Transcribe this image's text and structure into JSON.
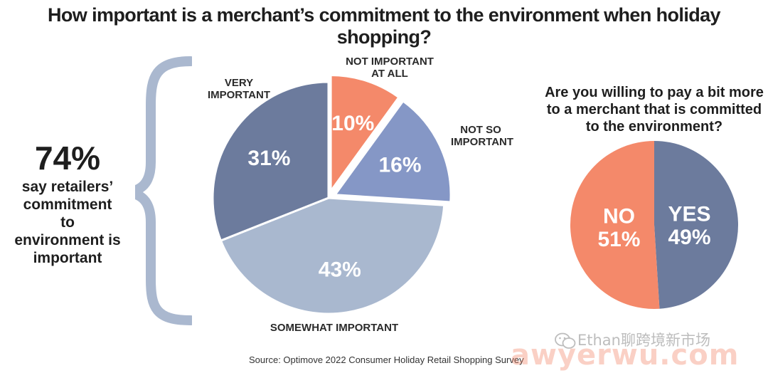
{
  "title": "How important is a merchant’s commitment to the environment when holiday shopping?",
  "summary": {
    "big_number": "74%",
    "text": "say retailers’ commitment to environment is important"
  },
  "chart_data": [
    {
      "type": "pie",
      "categories": [
        "NOT IMPORTANT AT ALL",
        "NOT SO IMPORTANT",
        "SOMEWHAT IMPORTANT",
        "VERY IMPORTANT"
      ],
      "values": [
        10,
        16,
        43,
        31
      ],
      "value_labels": [
        "10%",
        "16%",
        "43%",
        "31%"
      ],
      "colors": [
        "#f4896a",
        "#8597c6",
        "#a9b8cf",
        "#6c7b9d"
      ],
      "exploded": [
        "NOT IMPORTANT AT ALL",
        "NOT SO IMPORTANT"
      ],
      "legend": "none"
    },
    {
      "type": "pie",
      "title": "Are you willing to pay a bit more to a merchant that is committed to the environment?",
      "categories": [
        "YES",
        "NO"
      ],
      "values": [
        49,
        51
      ],
      "value_labels": [
        "49%",
        "51%"
      ],
      "colors": [
        "#6c7b9d",
        "#f4896a"
      ],
      "legend": "none"
    }
  ],
  "source": "Source: Optimove 2022 Consumer Holiday Retail Shopping Survey",
  "watermark": {
    "line1": "Ethan聊跨境新市场",
    "line2": "awyerwu.com"
  }
}
